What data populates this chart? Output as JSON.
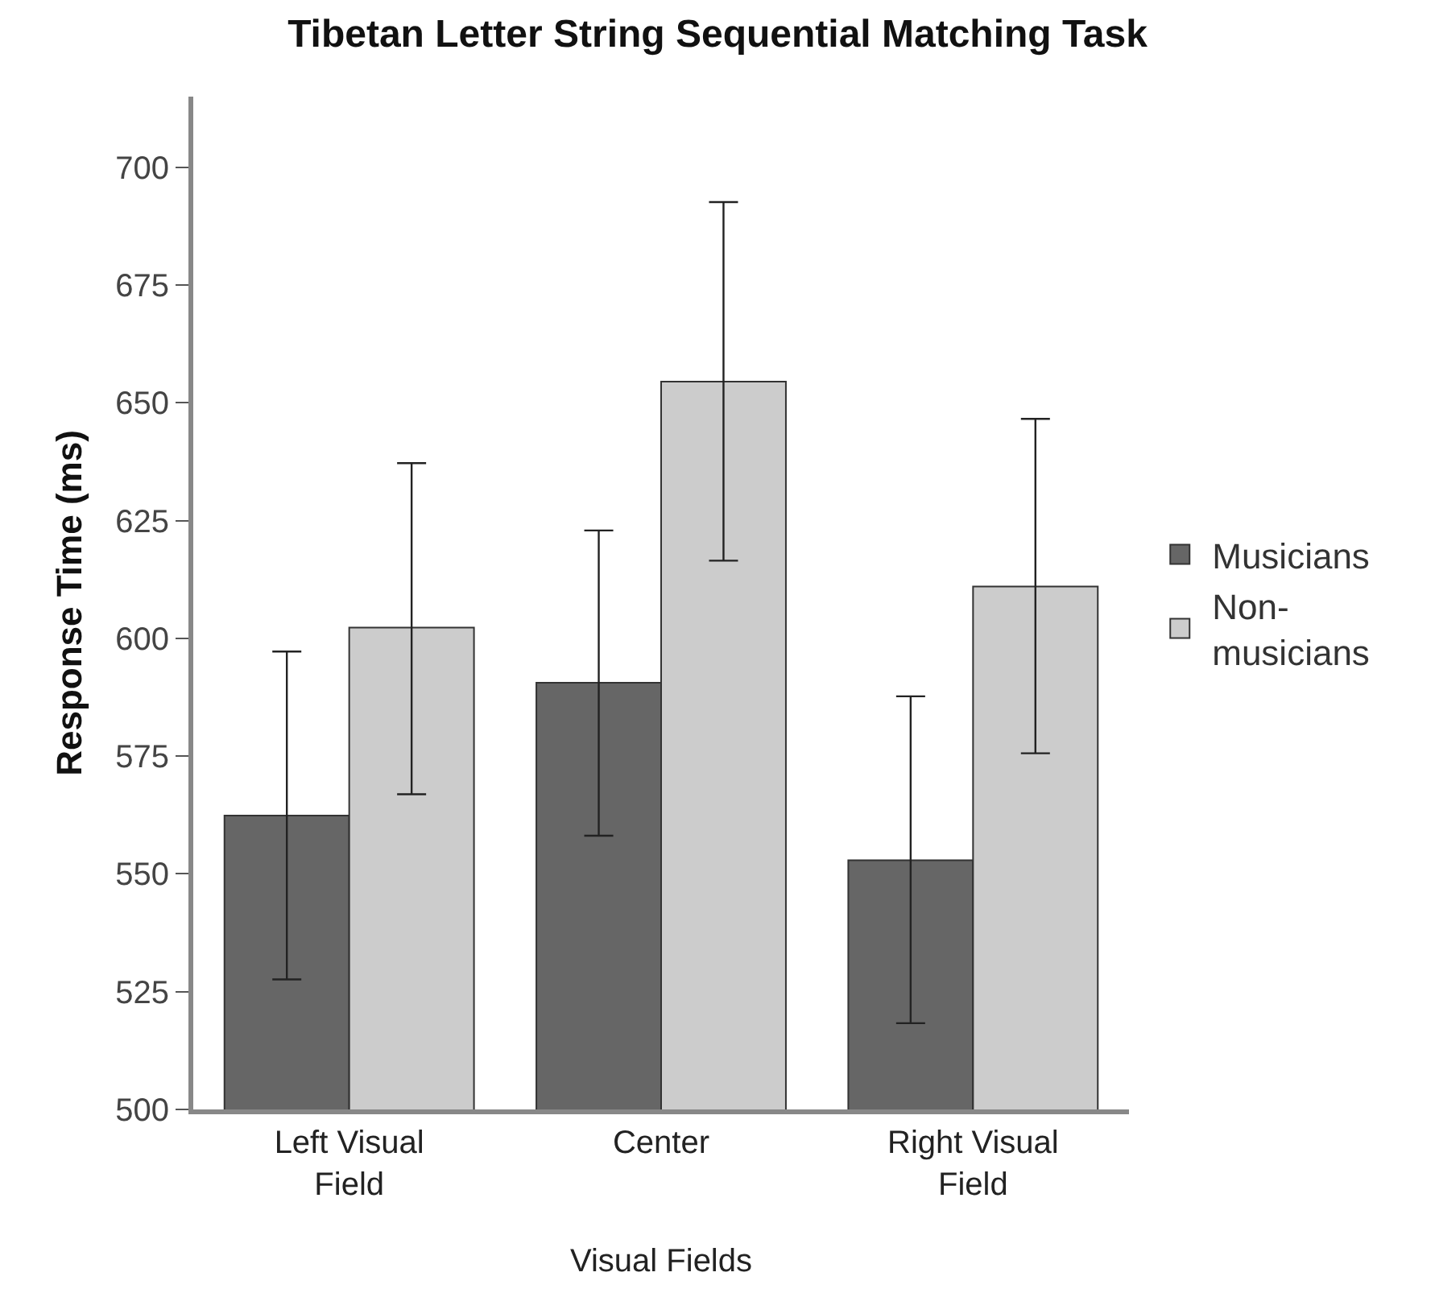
{
  "chart_data": {
    "type": "bar",
    "title": "Tibetan Letter String Sequential Matching Task",
    "xlabel": "Visual Fields",
    "ylabel": "Response Time (ms)",
    "categories": [
      "Left Visual Field",
      "Center",
      "Right Visual Field"
    ],
    "series": [
      {
        "name": "Musicians",
        "color": "#666666",
        "values": [
          562.4,
          590.6,
          552.9
        ],
        "errors": [
          [
            527.6,
            597.2
          ],
          [
            558.1,
            622.9
          ],
          [
            518.3,
            587.7
          ]
        ]
      },
      {
        "name": "Non-musicians",
        "color": "#cccccc",
        "values": [
          602.3,
          654.5,
          611.0
        ],
        "errors": [
          [
            566.9,
            637.2
          ],
          [
            616.5,
            692.6
          ],
          [
            575.6,
            646.6
          ]
        ]
      }
    ],
    "ylim": [
      500,
      715
    ],
    "yticks": [
      500,
      525,
      550,
      575,
      600,
      625,
      650,
      675,
      700
    ],
    "legend": "right"
  }
}
